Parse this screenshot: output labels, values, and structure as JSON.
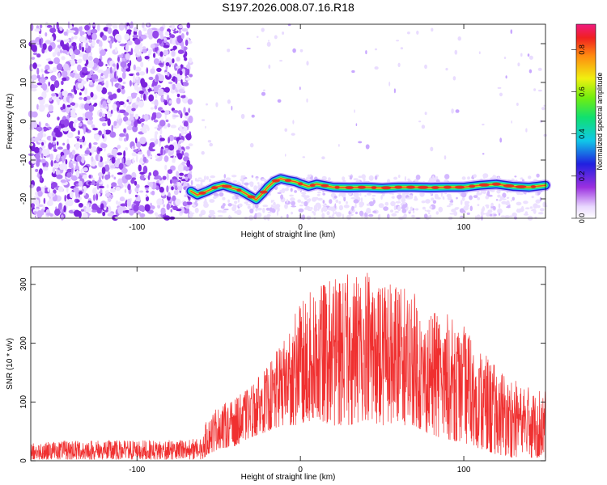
{
  "title": "S197.2026.008.07.16.R18",
  "spectrogram": {
    "xlabel": "Height of straight line (km)",
    "ylabel": "Frequency (Hz)",
    "xlim": [
      -165,
      150
    ],
    "ylim": [
      -25,
      25
    ],
    "xticks": [
      -100,
      0,
      100
    ],
    "yticks": [
      -20,
      -10,
      0,
      10,
      20
    ],
    "noise_region_x": [
      -165,
      -67
    ],
    "track": {
      "x": [
        -67,
        -63,
        -57,
        -52,
        -47,
        -42,
        -37,
        -32,
        -27,
        -23,
        -20,
        -16,
        -12,
        -8,
        -3,
        0,
        5,
        10,
        15,
        20,
        30,
        40,
        50,
        60,
        70,
        80,
        90,
        100,
        110,
        120,
        130,
        140,
        150
      ],
      "y": [
        -18,
        -19,
        -18,
        -17,
        -16.5,
        -17.2,
        -17.8,
        -19,
        -20.2,
        -18.5,
        -17,
        -15.5,
        -14.8,
        -15.2,
        -15.6,
        -16.1,
        -16.8,
        -16.2,
        -16.6,
        -17,
        -17.1,
        -17,
        -17.2,
        -17,
        -17,
        -17.1,
        -17,
        -17,
        -16.5,
        -16.2,
        -16.8,
        -17,
        -16.5
      ]
    },
    "colorbar": {
      "label": "Normalized spectral amplitude",
      "ticks": [
        "0.0",
        "0.2",
        "0.4",
        "0.6",
        "0.8"
      ],
      "range": [
        0,
        0.92
      ]
    },
    "colors": {
      "noise": "#7a2ee6",
      "track_low": "#1c1cd8",
      "track_mid": "#17d9a0",
      "track_peak": "#e53030"
    }
  },
  "chart_data": [
    {
      "type": "heatmap",
      "title": "S197.2026.008.07.16.R18",
      "xlabel": "Height of straight line (km)",
      "ylabel": "Frequency (Hz)",
      "xlim": [
        -165,
        150
      ],
      "ylim": [
        -25,
        25
      ],
      "colorbar_label": "Normalized spectral amplitude",
      "ridge": {
        "x": [
          -67,
          -40,
          -27,
          -12,
          0,
          20,
          60,
          100,
          120,
          150
        ],
        "y": [
          -18,
          -17,
          -20,
          -15,
          -16,
          -17,
          -17,
          -17,
          -16,
          -16.5
        ]
      }
    },
    {
      "type": "line",
      "xlabel": "Height of straight line (km)",
      "ylabel": "SNR (10 * v/v)",
      "xlim": [
        -165,
        150
      ],
      "ylim": [
        0,
        330
      ],
      "x": [
        -165,
        -140,
        -110,
        -80,
        -60,
        -57,
        -50,
        -40,
        -30,
        -20,
        -10,
        0,
        10,
        20,
        30,
        40,
        50,
        60,
        70,
        75,
        85,
        100,
        110,
        120,
        130,
        140,
        150
      ],
      "values_max": [
        30,
        35,
        35,
        35,
        38,
        75,
        95,
        105,
        130,
        160,
        210,
        270,
        300,
        310,
        320,
        330,
        310,
        300,
        290,
        240,
        260,
        230,
        190,
        160,
        140,
        130,
        120
      ],
      "values_min": [
        2,
        2,
        2,
        2,
        2,
        10,
        20,
        25,
        40,
        50,
        60,
        60,
        70,
        60,
        60,
        70,
        60,
        60,
        60,
        50,
        40,
        30,
        20,
        10,
        5,
        5,
        5
      ],
      "color": "#f03030"
    }
  ],
  "snr": {
    "xlabel": "Height of straight line (km)",
    "ylabel": "SNR (10 * v/v)",
    "xticks": [
      -100,
      0,
      100
    ],
    "yticks": [
      0,
      100,
      200,
      300
    ]
  }
}
